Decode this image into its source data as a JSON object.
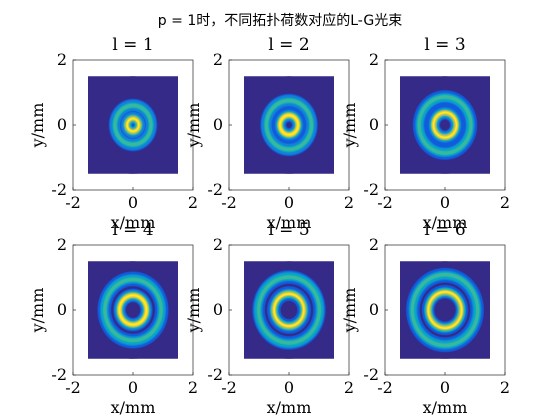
{
  "figure": {
    "suptitle": "p = 1时，不同拓扑荷数对应的L-G光束"
  },
  "chart_data": [
    {
      "type": "heatmap",
      "title": "l = 1",
      "xlabel": "x/mm",
      "ylabel": "y/mm",
      "xlim": [
        -2,
        2
      ],
      "ylim": [
        -2,
        2
      ],
      "xticks": [
        "-2",
        "0",
        "2"
      ],
      "yticks": [
        "-2",
        "0",
        "2"
      ],
      "field_extent": [
        -1.5,
        1.5
      ],
      "p": 1,
      "l": 1,
      "colormap": "parula",
      "background": "#352a87",
      "inner_ring_radius_mm": 0.2,
      "outer_ring_radius_mm": 0.6
    },
    {
      "type": "heatmap",
      "title": "l = 2",
      "xlabel": "x/mm",
      "ylabel": "y/mm",
      "xlim": [
        -2,
        2
      ],
      "ylim": [
        -2,
        2
      ],
      "xticks": [
        "-2",
        "0",
        "2"
      ],
      "yticks": [
        "-2",
        "0",
        "2"
      ],
      "field_extent": [
        -1.5,
        1.5
      ],
      "p": 1,
      "l": 2,
      "colormap": "parula",
      "background": "#352a87",
      "inner_ring_radius_mm": 0.3,
      "outer_ring_radius_mm": 0.75
    },
    {
      "type": "heatmap",
      "title": "l = 3",
      "xlabel": "x/mm",
      "ylabel": "y/mm",
      "xlim": [
        -2,
        2
      ],
      "ylim": [
        -2,
        2
      ],
      "xticks": [
        "-2",
        "0",
        "2"
      ],
      "yticks": [
        "-2",
        "0",
        "2"
      ],
      "field_extent": [
        -1.5,
        1.5
      ],
      "p": 1,
      "l": 3,
      "colormap": "parula",
      "background": "#352a87",
      "inner_ring_radius_mm": 0.38,
      "outer_ring_radius_mm": 0.85
    },
    {
      "type": "heatmap",
      "title": "l = 4",
      "xlabel": "x/mm",
      "ylabel": "y/mm",
      "xlim": [
        -2,
        2
      ],
      "ylim": [
        -2,
        2
      ],
      "xticks": [
        "-2",
        "0",
        "2"
      ],
      "yticks": [
        "-2",
        "0",
        "2"
      ],
      "field_extent": [
        -1.5,
        1.5
      ],
      "p": 1,
      "l": 4,
      "colormap": "parula",
      "background": "#352a87",
      "inner_ring_radius_mm": 0.45,
      "outer_ring_radius_mm": 0.95
    },
    {
      "type": "heatmap",
      "title": "l = 5",
      "xlabel": "x/mm",
      "ylabel": "y/mm",
      "xlim": [
        -2,
        2
      ],
      "ylim": [
        -2,
        2
      ],
      "xticks": [
        "-2",
        "0",
        "2"
      ],
      "yticks": [
        "-2",
        "0",
        "2"
      ],
      "field_extent": [
        -1.5,
        1.5
      ],
      "p": 1,
      "l": 5,
      "colormap": "parula",
      "background": "#352a87",
      "inner_ring_radius_mm": 0.5,
      "outer_ring_radius_mm": 1.02
    },
    {
      "type": "heatmap",
      "title": "l = 6",
      "xlabel": "x/mm",
      "ylabel": "y/mm",
      "xlim": [
        -2,
        2
      ],
      "ylim": [
        -2,
        2
      ],
      "xticks": [
        "-2",
        "0",
        "2"
      ],
      "yticks": [
        "-2",
        "0",
        "2"
      ],
      "field_extent": [
        -1.5,
        1.5
      ],
      "p": 1,
      "l": 6,
      "colormap": "parula",
      "background": "#352a87",
      "inner_ring_radius_mm": 0.55,
      "outer_ring_radius_mm": 1.08
    }
  ]
}
